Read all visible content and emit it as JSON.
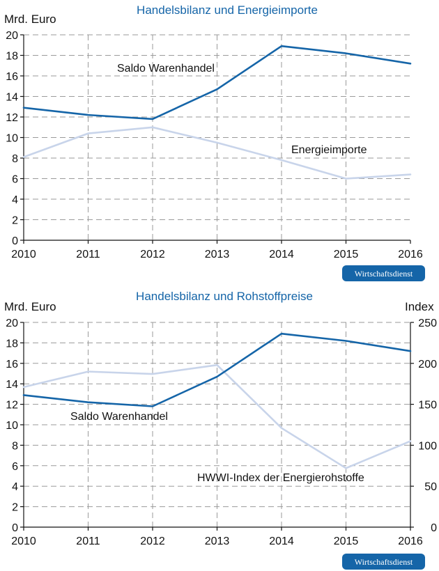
{
  "colors": {
    "saldo": "#1565a8",
    "other": "#c8d4ea",
    "title": "#1565a8",
    "badge": "#1565a8"
  },
  "badge_label": "Wirtschaftsdienst",
  "chart_data": [
    {
      "type": "line",
      "title": "Handelsbilanz und Energieimporte",
      "ylabel": "Mrd. Euro",
      "ylim": [
        0,
        20
      ],
      "yticks": [
        "0",
        "2",
        "4",
        "6",
        "8",
        "10",
        "12",
        "14",
        "16",
        "18",
        "20"
      ],
      "x": [
        "2010",
        "2011",
        "2012",
        "2013",
        "2014",
        "2015",
        "2016"
      ],
      "grid": true,
      "series": [
        {
          "name": "Saldo Warenhandel",
          "values": [
            12.9,
            12.2,
            11.8,
            14.7,
            18.9,
            18.2,
            17.2
          ]
        },
        {
          "name": "Energieimporte",
          "values": [
            8.1,
            10.4,
            11.0,
            9.5,
            7.8,
            6.0,
            6.4
          ]
        }
      ]
    },
    {
      "type": "line",
      "title": "Handelsbilanz und Rohstoffpreise",
      "ylabel": "Mrd. Euro",
      "ylabel_right": "Index",
      "ylim": [
        0,
        20
      ],
      "ylim_right": [
        0,
        250
      ],
      "yticks": [
        "0",
        "2",
        "4",
        "6",
        "8",
        "10",
        "12",
        "14",
        "16",
        "18",
        "20"
      ],
      "yticks_right": [
        "0",
        "50",
        "100",
        "150",
        "200",
        "250"
      ],
      "x": [
        "2010",
        "2011",
        "2012",
        "2013",
        "2014",
        "2015",
        "2016"
      ],
      "grid": true,
      "series": [
        {
          "name": "Saldo Warenhandel",
          "axis": "left",
          "values": [
            12.9,
            12.2,
            11.8,
            14.7,
            18.9,
            18.2,
            17.2
          ]
        },
        {
          "name": "HWWI-Index der Energierohstoffe",
          "axis": "right",
          "values": [
            171,
            190,
            187,
            198,
            121,
            72,
            105
          ]
        }
      ]
    }
  ]
}
